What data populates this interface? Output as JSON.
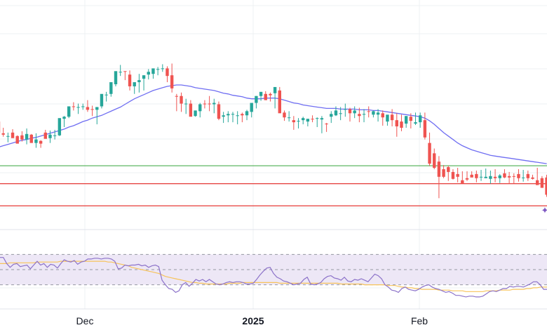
{
  "colors": {
    "up": "#26a69a",
    "down": "#ef5350",
    "ma": "#6f6ef2",
    "rsi": "#8c72c9",
    "rsi_ma": "#f7c35a",
    "rsi_band": "#ede7f6",
    "h_green": "#4caf50",
    "h_red": "#e53935",
    "grid": "#edf0f3",
    "background": "#ffffff",
    "marker": "#7e57c2"
  },
  "x_axis": {
    "labels": [
      "Dec",
      "2025",
      "Feb"
    ]
  },
  "marker": {
    "icon": "plus-icon"
  },
  "chart_data": [
    {
      "type": "candlestick",
      "title": "",
      "xlabel": "",
      "ylabel": "",
      "ylim": [
        0,
        305
      ],
      "grid": true,
      "candles": [
        [
          129,
          135,
          113,
          112
        ],
        [
          112,
          120,
          110,
          107
        ],
        [
          107,
          113,
          108,
          99
        ],
        [
          113,
          118,
          105,
          108
        ],
        [
          108,
          109,
          97,
          103
        ],
        [
          109,
          115,
          103,
          100
        ],
        [
          103,
          119,
          111,
          96
        ],
        [
          110,
          111,
          98,
          102
        ],
        [
          98,
          112,
          103,
          91
        ],
        [
          101,
          102,
          97,
          91
        ],
        [
          113,
          117,
          104,
          106
        ],
        [
          105,
          116,
          110,
          98
        ],
        [
          109,
          117,
          109,
          103
        ],
        [
          109,
          124,
          134,
          108
        ],
        [
          133,
          137,
          136,
          121
        ],
        [
          136,
          144,
          151,
          134
        ],
        [
          151,
          157,
          150,
          145
        ],
        [
          149,
          155,
          150,
          140
        ],
        [
          150,
          155,
          151,
          146
        ],
        [
          150,
          160,
          146,
          143
        ],
        [
          147,
          152,
          146,
          137
        ],
        [
          146,
          149,
          150,
          125
        ],
        [
          151,
          156,
          169,
          148
        ],
        [
          168,
          172,
          168,
          158
        ],
        [
          169,
          173,
          186,
          165
        ],
        [
          183,
          191,
          202,
          180
        ],
        [
          201,
          211,
          201,
          195
        ],
        [
          202,
          202,
          201,
          189
        ],
        [
          197,
          203,
          180,
          174
        ],
        [
          180,
          184,
          186,
          169
        ],
        [
          186,
          198,
          189,
          171
        ],
        [
          191,
          196,
          196,
          174
        ],
        [
          197,
          205,
          201,
          190
        ],
        [
          198,
          203,
          206,
          191
        ],
        [
          204,
          208,
          205,
          196
        ],
        [
          205,
          212,
          206,
          201
        ],
        [
          206,
          209,
          195,
          186
        ],
        [
          196,
          213,
          177,
          171
        ],
        [
          166,
          169,
          165,
          144
        ],
        [
          166,
          171,
          155,
          143
        ],
        [
          155,
          162,
          155,
          140
        ],
        [
          155,
          160,
          136,
          149
        ],
        [
          137,
          145,
          145,
          136
        ],
        [
          144,
          156,
          154,
          135
        ],
        [
          155,
          160,
          154,
          148
        ],
        [
          155,
          166,
          154,
          144
        ],
        [
          154,
          162,
          156,
          141
        ],
        [
          154,
          158,
          133,
          131
        ],
        [
          136,
          143,
          138,
          127
        ],
        [
          138,
          144,
          140,
          128
        ],
        [
          140,
          143,
          140,
          128
        ],
        [
          137,
          144,
          138,
          125
        ],
        [
          140,
          142,
          138,
          128
        ],
        [
          138,
          146,
          144,
          131
        ],
        [
          143,
          155,
          156,
          135
        ],
        [
          156,
          166,
          166,
          148
        ],
        [
          166,
          168,
          172,
          159
        ],
        [
          169,
          173,
          160,
          160
        ],
        [
          169,
          171,
          167,
          158
        ],
        [
          170,
          178,
          179,
          148
        ],
        [
          174,
          179,
          141,
          142
        ],
        [
          142,
          145,
          135,
          130
        ],
        [
          135,
          144,
          135,
          129
        ],
        [
          131,
          137,
          128,
          117
        ],
        [
          130,
          134,
          130,
          119
        ],
        [
          131,
          136,
          134,
          125
        ],
        [
          129,
          132,
          133,
          122
        ],
        [
          133,
          138,
          132,
          128
        ],
        [
          133,
          135,
          134,
          121
        ],
        [
          132,
          137,
          134,
          112
        ],
        [
          126,
          127,
          125,
          114
        ],
        [
          136,
          144,
          140,
          127
        ],
        [
          138,
          151,
          145,
          137
        ],
        [
          140,
          150,
          141,
          131
        ],
        [
          146,
          155,
          147,
          136
        ],
        [
          147,
          149,
          141,
          129
        ],
        [
          141,
          151,
          145,
          134
        ],
        [
          140,
          149,
          137,
          128
        ],
        [
          139,
          147,
          140,
          128
        ],
        [
          144,
          151,
          143,
          135
        ],
        [
          139,
          145,
          144,
          135
        ],
        [
          139,
          147,
          142,
          129
        ],
        [
          141,
          145,
          135,
          123
        ],
        [
          129,
          137,
          139,
          123
        ],
        [
          139,
          147,
          131,
          122
        ],
        [
          131,
          141,
          122,
          107
        ],
        [
          129,
          139,
          120,
          115
        ],
        [
          126,
          137,
          137,
          120
        ],
        [
          136,
          141,
          130,
          119
        ],
        [
          126,
          142,
          128,
          124
        ],
        [
          128,
          142,
          138,
          120
        ],
        [
          131,
          142,
          106,
          103
        ],
        [
          98,
          113,
          68,
          65
        ],
        [
          83,
          90,
          62,
          60
        ],
        [
          71,
          79,
          49,
          18
        ],
        [
          60,
          66,
          49,
          47
        ],
        [
          63,
          65,
          56,
          43
        ],
        [
          56,
          60,
          46,
          45
        ],
        [
          53,
          62,
          49,
          41
        ],
        [
          44,
          57,
          39,
          40
        ],
        [
          47,
          57,
          45,
          43
        ],
        [
          52,
          57,
          48,
          49
        ],
        [
          53,
          58,
          47,
          41
        ],
        [
          49,
          59,
          49,
          43
        ],
        [
          47,
          61,
          49,
          47
        ],
        [
          46,
          58,
          50,
          39
        ],
        [
          49,
          60,
          47,
          41
        ],
        [
          47,
          53,
          51,
          40
        ],
        [
          54,
          60,
          48,
          47
        ],
        [
          50,
          56,
          48,
          39
        ],
        [
          50,
          54,
          49,
          39
        ],
        [
          53,
          60,
          47,
          42
        ],
        [
          48,
          59,
          48,
          42
        ],
        [
          53,
          58,
          47,
          43
        ],
        [
          48,
          52,
          46,
          45
        ],
        [
          44,
          62,
          37,
          42
        ],
        [
          47,
          50,
          33,
          39
        ],
        [
          48,
          52,
          23,
          20
        ]
      ],
      "moving_average": [
        92,
        94,
        96,
        98,
        100,
        102,
        103,
        105,
        106,
        108,
        110,
        112,
        114,
        116,
        118,
        121,
        123,
        126,
        129,
        131,
        134,
        136,
        138,
        141,
        144,
        147,
        150,
        154,
        158,
        162,
        165,
        168,
        171,
        174,
        176,
        178,
        180,
        181,
        182,
        182,
        181,
        180,
        178,
        177,
        176,
        175,
        174,
        172,
        170,
        169,
        167,
        166,
        165,
        163,
        162,
        162,
        162,
        163,
        163,
        163,
        162,
        160,
        158,
        156,
        155,
        153,
        152,
        151,
        150,
        149,
        148,
        148,
        148,
        147,
        147,
        147,
        147,
        146,
        146,
        146,
        145,
        145,
        144,
        143,
        142,
        141,
        140,
        139,
        138,
        137,
        136,
        134,
        130,
        125,
        119,
        113,
        108,
        103,
        98,
        94,
        91,
        88,
        86,
        84,
        82,
        80,
        79,
        78,
        77,
        76,
        75,
        74,
        73,
        72,
        71,
        70,
        69,
        68
      ],
      "horizontal_levels": [
        {
          "value": 65,
          "color": "#4caf50"
        },
        {
          "value": 39,
          "color": "#e53935"
        },
        {
          "value": 7,
          "color": "#e53935"
        }
      ]
    },
    {
      "type": "line",
      "title": "",
      "xlabel": "",
      "ylabel": "",
      "ylim": [
        0,
        100
      ],
      "grid": true,
      "band": [
        30,
        70
      ],
      "series": [
        {
          "values": [
            66,
            66,
            58,
            53,
            57,
            58,
            54,
            55,
            56,
            51,
            56,
            61,
            56,
            58,
            53,
            57,
            56,
            52,
            58,
            63,
            61,
            60,
            62,
            57,
            60,
            61,
            64,
            64,
            65,
            65,
            64,
            65,
            65,
            64,
            61,
            51,
            52,
            56,
            55,
            56,
            56,
            57,
            55,
            56,
            53,
            55,
            56,
            54,
            36,
            30,
            25,
            24,
            20,
            22,
            30,
            33,
            28,
            32,
            37,
            35,
            37,
            34,
            37,
            34,
            31,
            30,
            31,
            33,
            34,
            33,
            34,
            34,
            33,
            31,
            31,
            32,
            37,
            43,
            48,
            52,
            53,
            45,
            40,
            38,
            35,
            34,
            32,
            30,
            31,
            32,
            37,
            40,
            31,
            30,
            31,
            33,
            38,
            41,
            42,
            39,
            38,
            36,
            40,
            35,
            34,
            37,
            36,
            38,
            36,
            34,
            39,
            44,
            42,
            38,
            30,
            27,
            23,
            22,
            20,
            25,
            27,
            24,
            23,
            22,
            24,
            27,
            29,
            30,
            27,
            25,
            24,
            22,
            20,
            21,
            19,
            16,
            16,
            15,
            14,
            15,
            15,
            14,
            14,
            15,
            18,
            21,
            22,
            21,
            23,
            25,
            25,
            28,
            27,
            28,
            28,
            27,
            29,
            31,
            34,
            34,
            30,
            24,
            24
          ]
        },
        {
          "values": [
            58,
            58,
            58,
            59,
            59,
            59,
            59,
            59,
            59,
            59,
            59,
            60,
            60,
            60,
            60,
            60,
            60,
            60,
            61,
            61,
            61,
            61,
            61,
            61,
            61,
            61,
            61,
            61,
            61,
            61,
            61,
            61,
            60,
            60,
            59,
            58,
            57,
            56,
            55,
            53,
            52,
            51,
            50,
            49,
            48,
            47,
            46,
            45,
            43,
            41,
            40,
            39,
            38,
            37,
            36,
            35,
            34,
            33,
            33,
            32,
            32,
            31,
            31,
            31,
            31,
            31,
            31,
            31,
            32,
            32,
            32,
            32,
            33,
            33,
            33,
            33,
            33,
            33,
            33,
            33,
            33,
            33,
            33,
            32,
            32,
            32,
            32,
            32,
            32,
            32,
            32,
            32,
            32,
            32,
            32,
            32,
            32,
            32,
            32,
            32,
            32,
            31,
            31,
            31,
            31,
            31,
            31,
            31,
            30,
            30,
            30,
            30,
            30,
            30,
            30,
            29,
            29,
            29,
            28,
            27,
            27,
            26,
            26,
            25,
            25,
            24,
            24,
            24,
            24,
            24,
            23,
            23,
            23,
            23,
            22,
            22,
            22,
            22,
            21,
            21,
            21,
            21,
            21,
            21,
            22,
            22,
            22,
            22,
            23,
            23,
            23,
            23,
            24,
            24,
            24,
            24,
            25,
            25,
            26,
            26,
            27,
            27,
            27
          ]
        }
      ]
    }
  ]
}
